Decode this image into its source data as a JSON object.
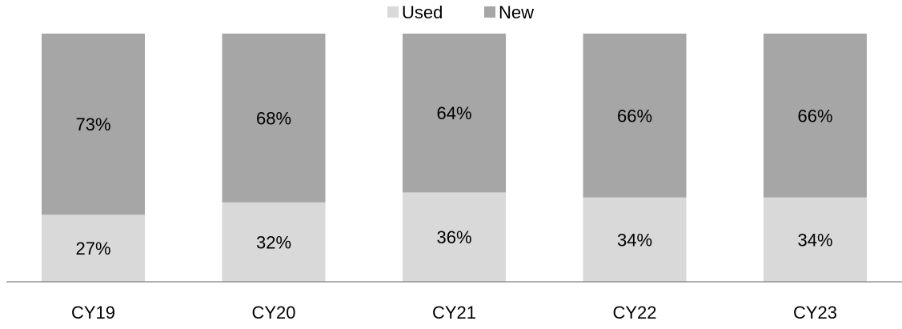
{
  "chart_data": {
    "type": "bar",
    "stacked": true,
    "normalized": true,
    "categories": [
      "CY19",
      "CY20",
      "CY21",
      "CY22",
      "CY23"
    ],
    "series": [
      {
        "name": "Used",
        "values": [
          27,
          32,
          36,
          34,
          34
        ],
        "labels": [
          "27%",
          "32%",
          "36%",
          "34%",
          "34%"
        ],
        "color": "#d9d9d9"
      },
      {
        "name": "New",
        "values": [
          73,
          68,
          64,
          66,
          66
        ],
        "labels": [
          "73%",
          "68%",
          "64%",
          "66%",
          "66%"
        ],
        "color": "#a6a6a6"
      }
    ],
    "unit": "%",
    "ylim": [
      0,
      100
    ],
    "legend": "top-center",
    "grid": false
  }
}
